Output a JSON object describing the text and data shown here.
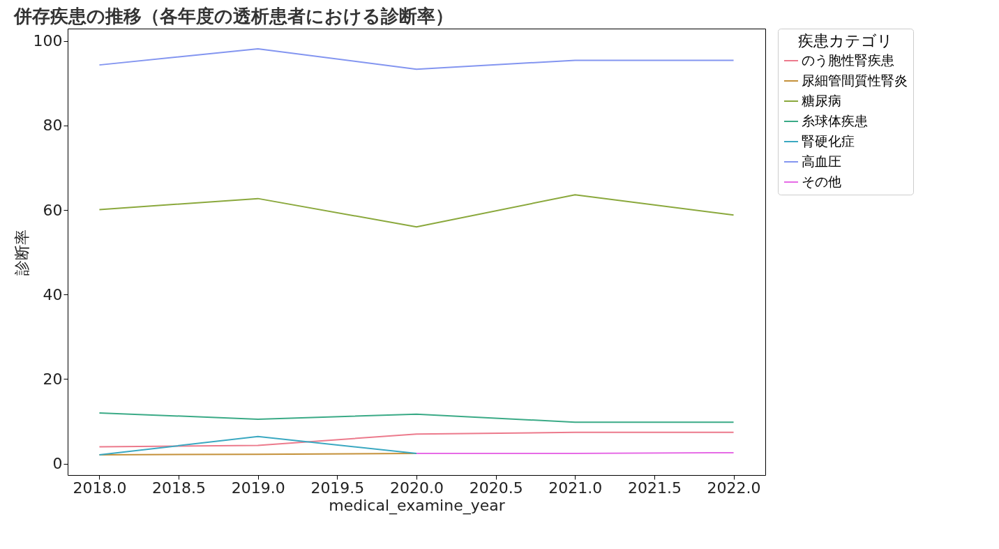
{
  "chart_data": {
    "type": "line",
    "title": "併存疾患の推移（各年度の透析患者における診断率）",
    "xlabel": "medical_examine_year",
    "ylabel": "診断率",
    "legend_title": "疾患カテゴリ",
    "x": [
      2018,
      2019,
      2020,
      2021,
      2022
    ],
    "xlim": [
      2017.8,
      2022.2
    ],
    "xticks": [
      {
        "value": 2018,
        "label": "2018.0"
      },
      {
        "value": 2018.5,
        "label": "2018.5"
      },
      {
        "value": 2019,
        "label": "2019.0"
      },
      {
        "value": 2019.5,
        "label": "2019.5"
      },
      {
        "value": 2020,
        "label": "2020.0"
      },
      {
        "value": 2020.5,
        "label": "2020.5"
      },
      {
        "value": 2021,
        "label": "2021.0"
      },
      {
        "value": 2021.5,
        "label": "2021.5"
      },
      {
        "value": 2022,
        "label": "2022.0"
      }
    ],
    "ylim": [
      -2.7,
      102.9
    ],
    "yticks": [
      0,
      20,
      40,
      60,
      80,
      100
    ],
    "grid": false,
    "legend": "top right",
    "marker": "none",
    "line_style": "solid",
    "series": [
      {
        "name": "のう胞性腎疾患",
        "color": "#ec7a8c",
        "values": [
          4.0,
          4.3,
          7.0,
          7.4,
          7.4
        ]
      },
      {
        "name": "尿細管間質性腎炎",
        "color": "#c4913a",
        "values": [
          2.1,
          2.2,
          2.4,
          null,
          null
        ]
      },
      {
        "name": "糖尿病",
        "color": "#8aa83c",
        "values": [
          60.1,
          62.7,
          56.0,
          63.6,
          58.8
        ]
      },
      {
        "name": "糸球体疾患",
        "color": "#3aaa86",
        "values": [
          12.0,
          10.5,
          11.7,
          9.8,
          9.8
        ]
      },
      {
        "name": "腎硬化症",
        "color": "#3aa8c1",
        "values": [
          2.1,
          6.4,
          2.4,
          null,
          null
        ]
      },
      {
        "name": "高血圧",
        "color": "#8395f0",
        "values": [
          94.3,
          98.1,
          93.3,
          95.4,
          95.4
        ]
      },
      {
        "name": "その他",
        "color": "#e66be6",
        "values": [
          null,
          null,
          2.4,
          2.4,
          2.6
        ]
      }
    ]
  }
}
